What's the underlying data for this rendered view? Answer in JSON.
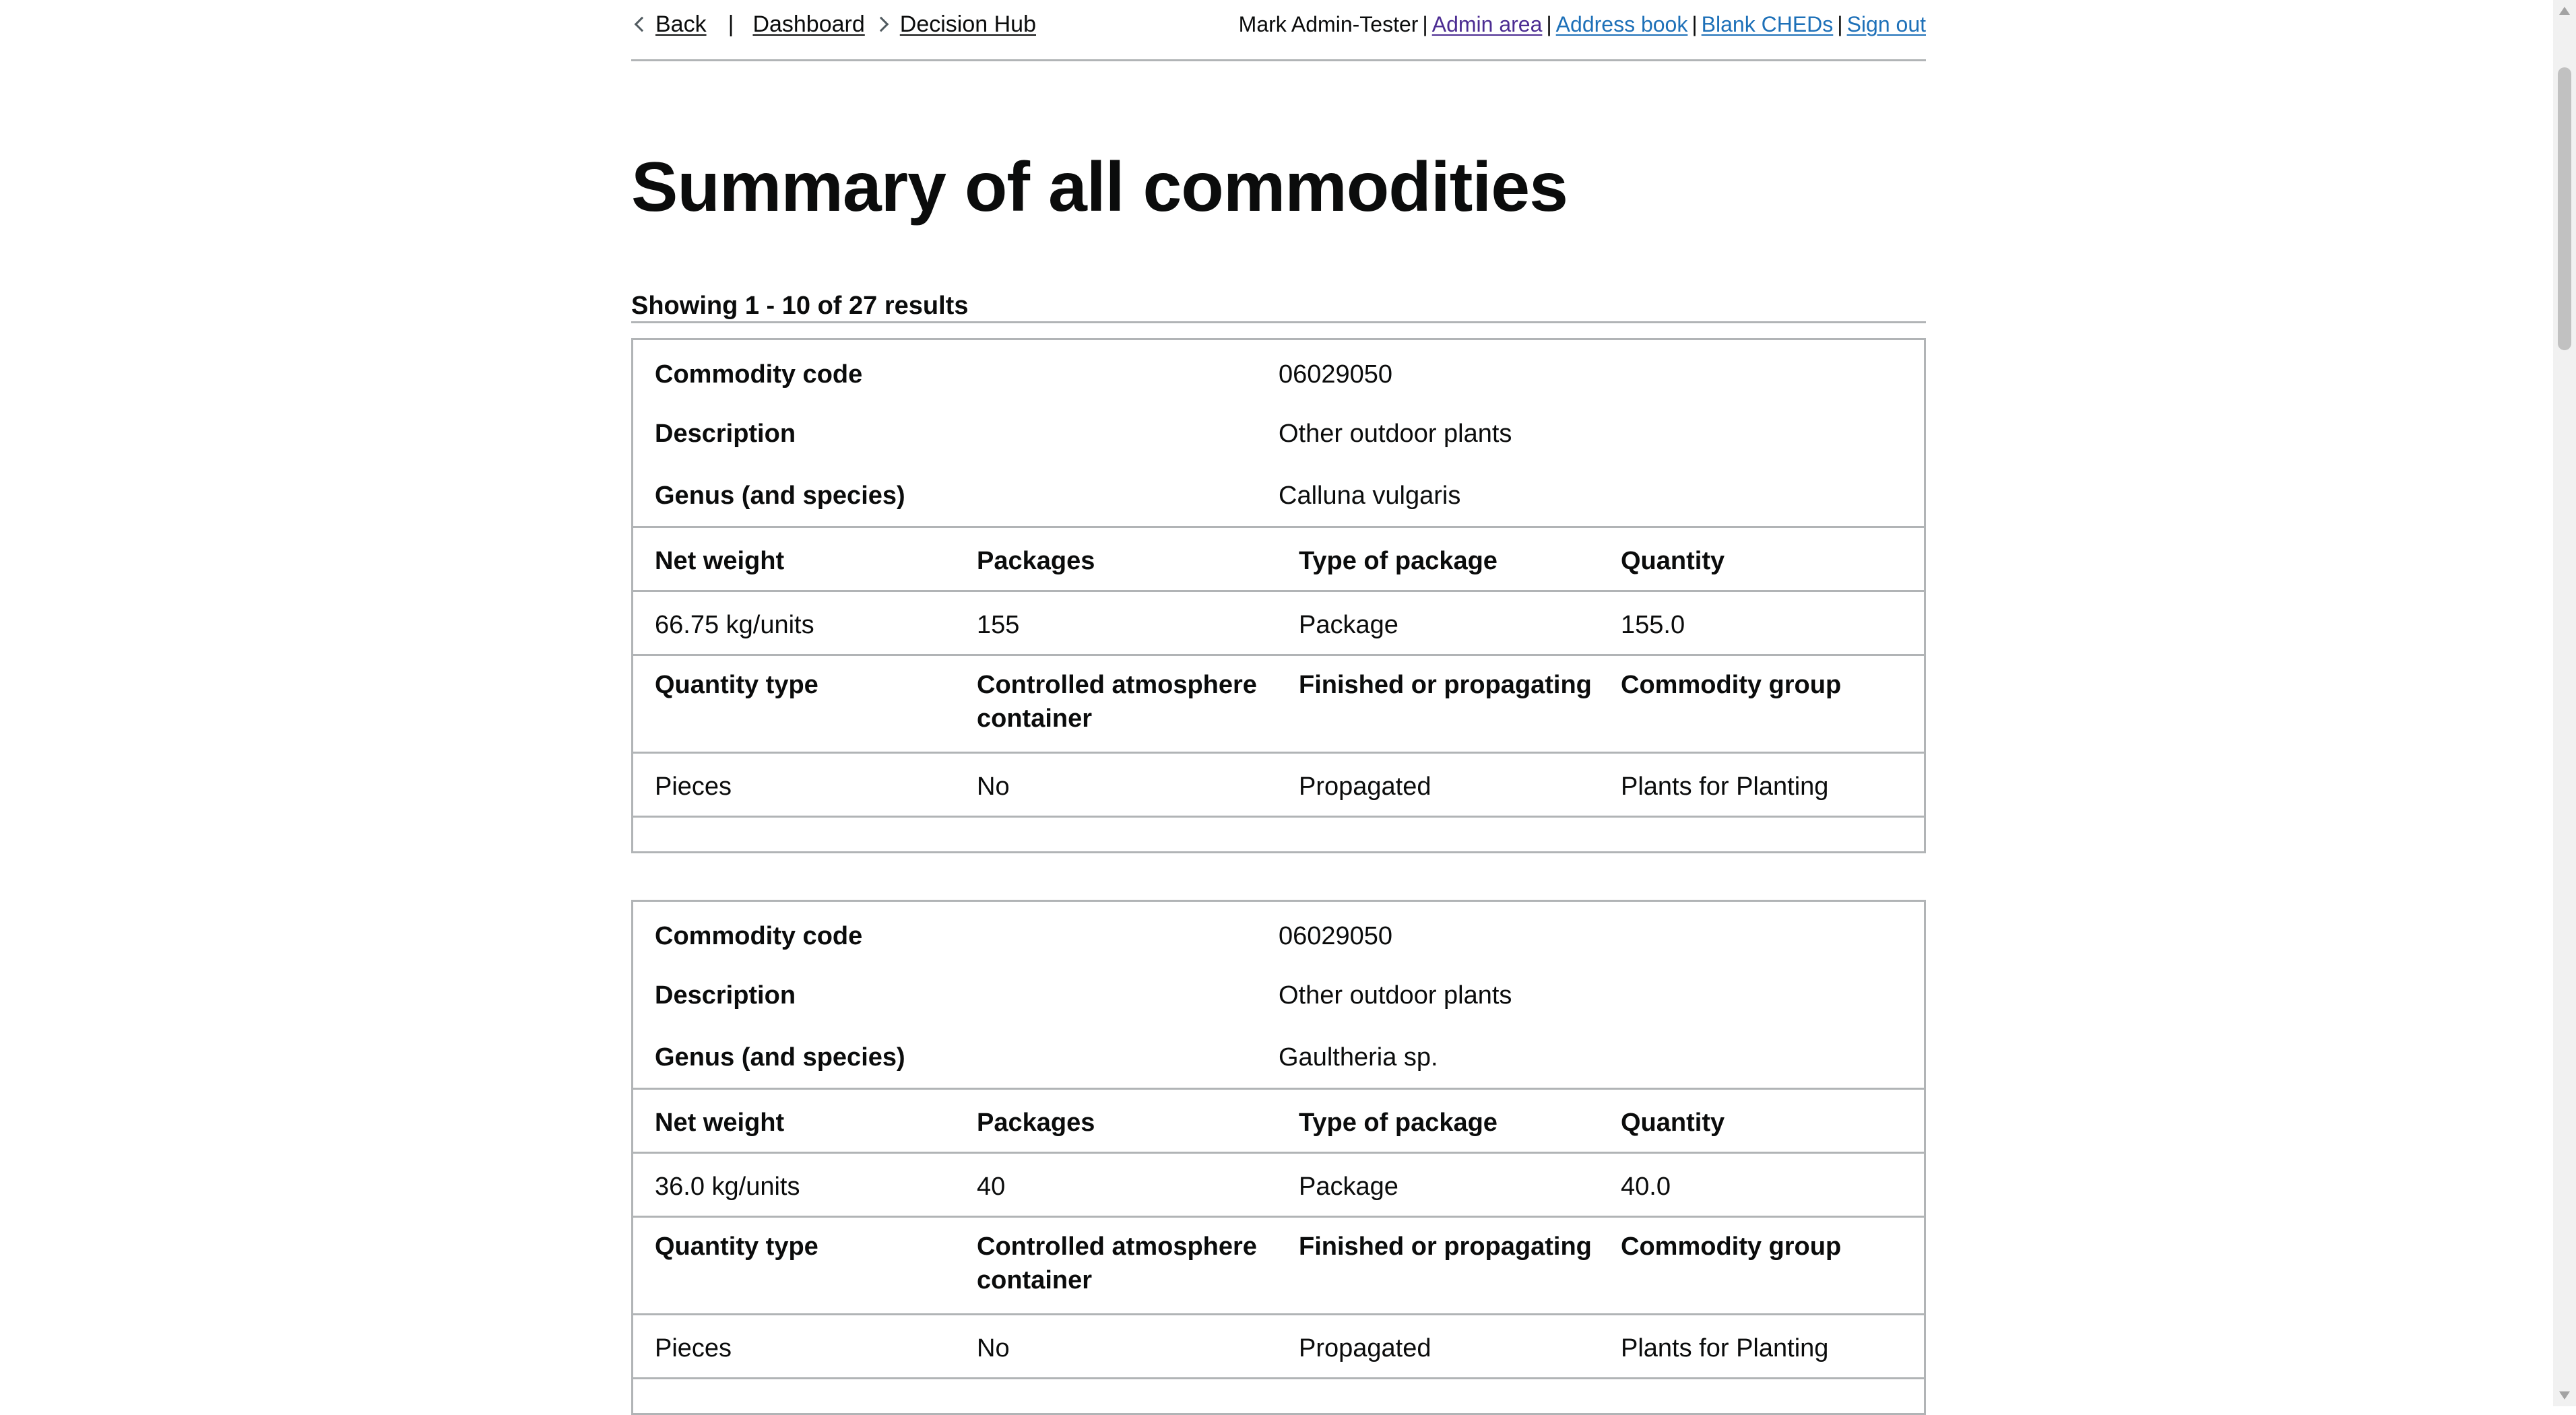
{
  "nav": {
    "back": "Back",
    "separator": "|",
    "crumbs": [
      "Dashboard",
      "Decision Hub"
    ]
  },
  "account": {
    "user": "Mark Admin-Tester",
    "pipe": "|",
    "links": [
      "Admin area",
      "Address book",
      "Blank CHEDs",
      "Sign out"
    ]
  },
  "page_title": "Summary of all commodities",
  "results_text": "Showing 1 - 10 of 27 results",
  "labels": {
    "commodity_code": "Commodity code",
    "description": "Description",
    "genus": "Genus (and species)",
    "net_weight": "Net weight",
    "packages": "Packages",
    "type_of_package": "Type of package",
    "quantity": "Quantity",
    "quantity_type": "Quantity type",
    "controlled_atmosphere": "Controlled atmosphere container",
    "finished_or_propagating": "Finished or propagating",
    "commodity_group": "Commodity group"
  },
  "commodities": [
    {
      "code": "06029050",
      "description": "Other outdoor plants",
      "genus": "Calluna vulgaris",
      "net_weight": "66.75 kg/units",
      "packages": "155",
      "type_of_package": "Package",
      "quantity": "155.0",
      "quantity_type": "Pieces",
      "controlled_atmosphere": "No",
      "finished_or_propagating": "Propagated",
      "commodity_group": "Plants for Planting"
    },
    {
      "code": "06029050",
      "description": "Other outdoor plants",
      "genus": "Gaultheria sp.",
      "net_weight": "36.0 kg/units",
      "packages": "40",
      "type_of_package": "Package",
      "quantity": "40.0",
      "quantity_type": "Pieces",
      "controlled_atmosphere": "No",
      "finished_or_propagating": "Propagated",
      "commodity_group": "Plants for Planting"
    }
  ],
  "colors": {
    "link": "#1d70b8",
    "visited": "#4c2c92",
    "border": "#b1b4b6",
    "text": "#0b0c0c"
  }
}
